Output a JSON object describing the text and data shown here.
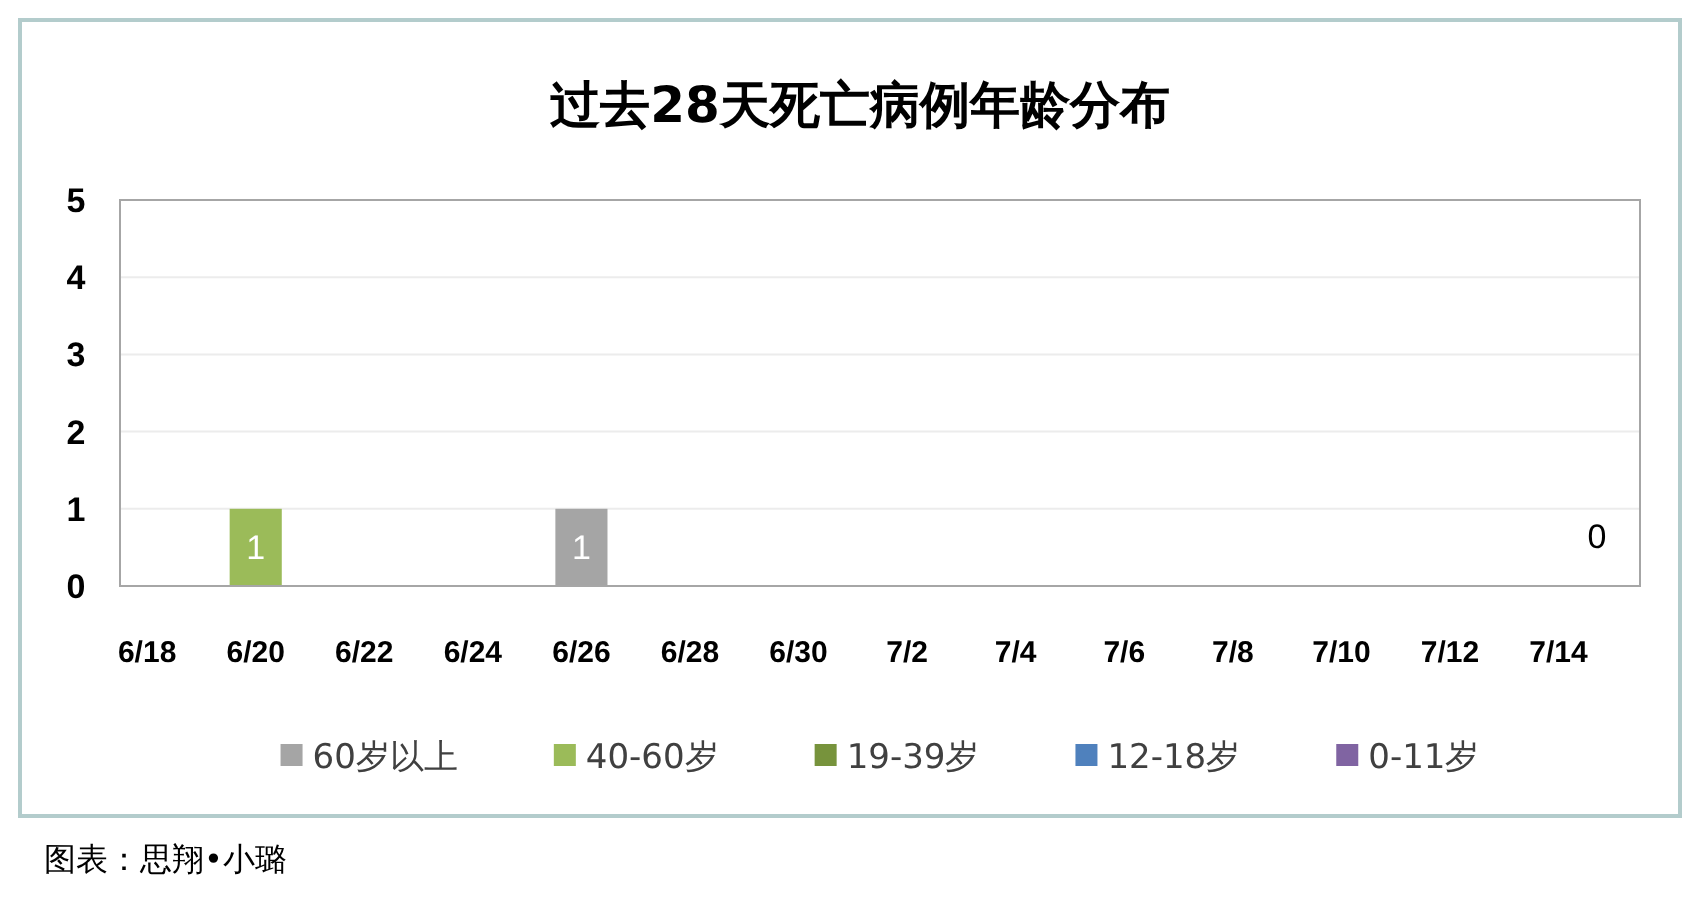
{
  "chart_data": {
    "type": "bar",
    "title": "过去28天死亡病例年龄分布",
    "categories": [
      "6/18",
      null,
      "6/20",
      null,
      "6/22",
      null,
      "6/24",
      null,
      "6/26",
      null,
      "6/28",
      null,
      "6/30",
      null,
      "7/2",
      null,
      "7/4",
      null,
      "7/6",
      null,
      "7/8",
      null,
      "7/10",
      null,
      "7/12",
      null,
      "7/14",
      null
    ],
    "stacked": true,
    "ylim": [
      0,
      5
    ],
    "yticks": [
      0,
      1,
      2,
      3,
      4,
      5
    ],
    "grid": "y",
    "legend": "bottom",
    "series": [
      {
        "name": "60岁以上",
        "color": "#a5a5a5",
        "values": [
          0,
          0,
          0,
          0,
          0,
          0,
          0,
          0,
          1,
          0,
          0,
          0,
          0,
          0,
          0,
          0,
          0,
          0,
          0,
          0,
          0,
          0,
          0,
          0,
          0,
          0,
          0,
          0
        ],
        "value_labels": [
          null,
          null,
          null,
          null,
          null,
          null,
          null,
          null,
          "1",
          null,
          null,
          null,
          null,
          null,
          null,
          null,
          null,
          null,
          null,
          null,
          null,
          null,
          null,
          null,
          null,
          null,
          null,
          "0"
        ]
      },
      {
        "name": "40-60岁",
        "color": "#9bbb59",
        "values": [
          0,
          0,
          1,
          0,
          0,
          0,
          0,
          0,
          0,
          0,
          0,
          0,
          0,
          0,
          0,
          0,
          0,
          0,
          0,
          0,
          0,
          0,
          0,
          0,
          0,
          0,
          0,
          0
        ],
        "value_labels": [
          null,
          null,
          "1",
          null,
          null,
          null,
          null,
          null,
          null,
          null,
          null,
          null,
          null,
          null,
          null,
          null,
          null,
          null,
          null,
          null,
          null,
          null,
          null,
          null,
          null,
          null,
          null,
          null
        ]
      },
      {
        "name": "19-39岁",
        "color": "#77933c",
        "values": [
          0,
          0,
          0,
          0,
          0,
          0,
          0,
          0,
          0,
          0,
          0,
          0,
          0,
          0,
          0,
          0,
          0,
          0,
          0,
          0,
          0,
          0,
          0,
          0,
          0,
          0,
          0,
          0
        ]
      },
      {
        "name": "12-18岁",
        "color": "#4f81bd",
        "values": [
          0,
          0,
          0,
          0,
          0,
          0,
          0,
          0,
          0,
          0,
          0,
          0,
          0,
          0,
          0,
          0,
          0,
          0,
          0,
          0,
          0,
          0,
          0,
          0,
          0,
          0,
          0,
          0
        ]
      },
      {
        "name": "0-11岁",
        "color": "#8064a2",
        "values": [
          0,
          0,
          0,
          0,
          0,
          0,
          0,
          0,
          0,
          0,
          0,
          0,
          0,
          0,
          0,
          0,
          0,
          0,
          0,
          0,
          0,
          0,
          0,
          0,
          0,
          0,
          0,
          0
        ]
      }
    ],
    "annotations": [
      "图表：思翔•小璐"
    ]
  }
}
